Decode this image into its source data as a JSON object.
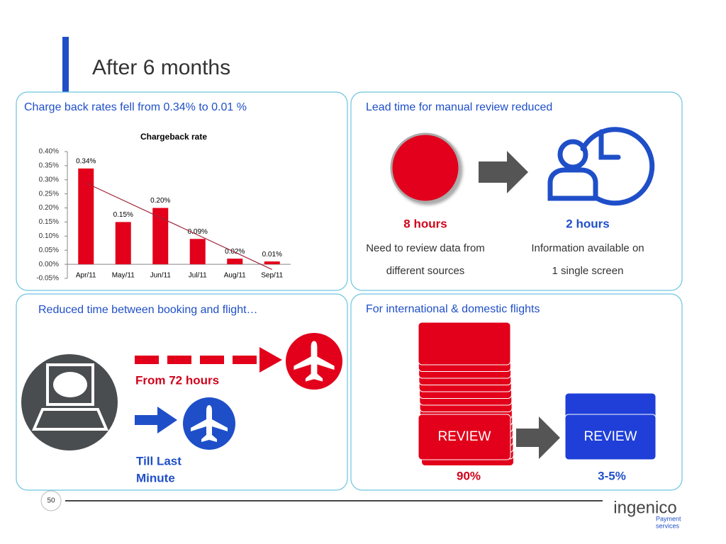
{
  "title": "After 6 months",
  "panels": [
    {
      "heading": "Charge back rates fell from 0.34% to 0.01 %"
    },
    {
      "heading": "Lead time for manual review reduced",
      "before": {
        "value": "8 hours",
        "lines": [
          "Need to review data from",
          "different sources"
        ]
      },
      "after": {
        "value": "2 hours",
        "lines": [
          "Information available on",
          "1 single screen"
        ]
      }
    },
    {
      "heading": "Reduced time between booking and flight…",
      "before": "From 72 hours",
      "after": [
        "Till Last",
        "Minute"
      ]
    },
    {
      "heading": "For international & domestic flights",
      "before": {
        "label": "REVIEW",
        "value": "90%"
      },
      "after": {
        "label": "REVIEW",
        "value": "3-5%"
      }
    }
  ],
  "chart_data": {
    "type": "bar",
    "title": "Chargeback rate",
    "categories": [
      "Apr/11",
      "May/11",
      "Jun/11",
      "Jul/11",
      "Aug/11",
      "Sep/11"
    ],
    "values": [
      0.34,
      0.15,
      0.2,
      0.09,
      0.02,
      0.01
    ],
    "value_labels": [
      "0.34%",
      "0.15%",
      "0.20%",
      "0.09%",
      "0.02%",
      "0.01%"
    ],
    "color": "#e2001a",
    "trendline": true,
    "ylim": [
      -0.05,
      0.4
    ],
    "yticks": [
      {
        "value": -0.05,
        "label": "-0.05%"
      },
      {
        "value": 0,
        "label": "0.00%"
      },
      {
        "value": 0.05,
        "label": "0.05%"
      },
      {
        "value": 0.1,
        "label": "0.10%"
      },
      {
        "value": 0.15,
        "label": "0.15%"
      },
      {
        "value": 0.2,
        "label": "0.20%"
      },
      {
        "value": 0.25,
        "label": "0.25%"
      },
      {
        "value": 0.3,
        "label": "0.30%"
      },
      {
        "value": 0.35,
        "label": "0.35%"
      },
      {
        "value": 0.4,
        "label": "0.40%"
      }
    ]
  },
  "footer": {
    "page": "50",
    "logo": "ingenico",
    "tagline": [
      "Payment",
      "services"
    ]
  }
}
